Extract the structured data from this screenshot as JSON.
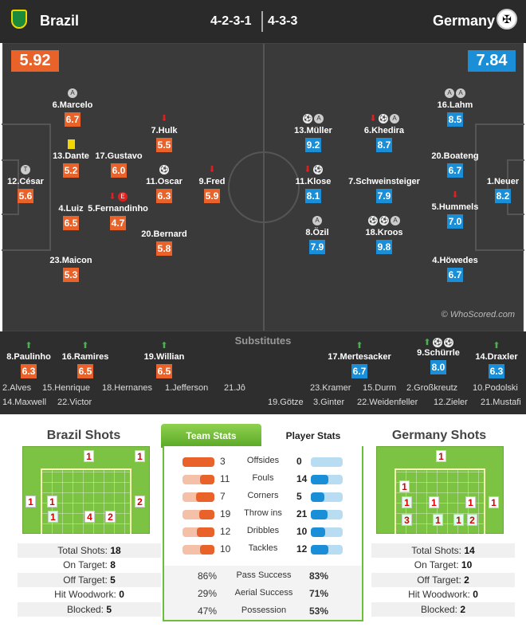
{
  "header": {
    "home_team": "Brazil",
    "away_team": "Germany",
    "home_formation": "4-2-3-1",
    "away_formation": "4-3-3"
  },
  "pitch": {
    "home_rating": "5.92",
    "away_rating": "7.84",
    "watermark": "© WhoScored.com"
  },
  "home_players": [
    {
      "name": "6.Marcelo",
      "rating": "6.7"
    },
    {
      "name": "13.Dante",
      "rating": "5.2"
    },
    {
      "name": "17.Gustavo",
      "rating": "6.0"
    },
    {
      "name": "7.Hulk",
      "rating": "5.5"
    },
    {
      "name": "12.César",
      "rating": "5.6"
    },
    {
      "name": "11.Oscar",
      "rating": "6.3"
    },
    {
      "name": "9.Fred",
      "rating": "5.9"
    },
    {
      "name": "4.Luiz",
      "rating": "6.5"
    },
    {
      "name": "5.Fernandinho",
      "rating": "4.7"
    },
    {
      "name": "20.Bernard",
      "rating": "5.8"
    },
    {
      "name": "23.Maicon",
      "rating": "5.3"
    }
  ],
  "away_players": [
    {
      "name": "16.Lahm",
      "rating": "8.5"
    },
    {
      "name": "13.Müller",
      "rating": "9.2"
    },
    {
      "name": "6.Khedira",
      "rating": "8.7"
    },
    {
      "name": "20.Boateng",
      "rating": "6.7"
    },
    {
      "name": "11.Klose",
      "rating": "8.1"
    },
    {
      "name": "7.Schweinsteiger",
      "rating": "7.9"
    },
    {
      "name": "1.Neuer",
      "rating": "8.2"
    },
    {
      "name": "5.Hummels",
      "rating": "7.0"
    },
    {
      "name": "8.Özil",
      "rating": "7.9"
    },
    {
      "name": "18.Kroos",
      "rating": "9.8"
    },
    {
      "name": "4.Höwedes",
      "rating": "6.7"
    }
  ],
  "substitutes": {
    "title": "Substitutes",
    "home": [
      {
        "name": "8.Paulinho",
        "rating": "6.3"
      },
      {
        "name": "16.Ramires",
        "rating": "6.5"
      },
      {
        "name": "19.Willian",
        "rating": "6.5"
      }
    ],
    "away": [
      {
        "name": "17.Mertesacker",
        "rating": "6.7"
      },
      {
        "name": "9.Schürrle",
        "rating": "8.0"
      },
      {
        "name": "14.Draxler",
        "rating": "6.3"
      }
    ],
    "home_bench_1": [
      "2.Alves",
      "15.Henrique",
      "18.Hernanes",
      "1.Jefferson",
      "21.Jô"
    ],
    "home_bench_2": [
      "14.Maxwell",
      "22.Victor"
    ],
    "away_bench_1": [
      "23.Kramer",
      "15.Durm",
      "2.Großkreutz",
      "10.Podolski"
    ],
    "away_bench_2": [
      "19.Götze",
      "3.Ginter",
      "22.Weidenfeller",
      "12.Zieler",
      "21.Mustafi"
    ]
  },
  "brazil_shots": {
    "title": "Brazil Shots",
    "zone_counts": [
      "1",
      "1",
      "1",
      "1",
      "2",
      "4",
      "2",
      "1"
    ],
    "stats": [
      {
        "label": "Total Shots:",
        "value": "18"
      },
      {
        "label": "On Target:",
        "value": "8"
      },
      {
        "label": "Off Target:",
        "value": "5"
      },
      {
        "label": "Hit Woodwork:",
        "value": "0"
      },
      {
        "label": "Blocked:",
        "value": "5"
      }
    ]
  },
  "germany_shots": {
    "title": "Germany Shots",
    "zone_counts": [
      "1",
      "1",
      "1",
      "1",
      "1",
      "1",
      "1",
      "3",
      "1",
      "2"
    ],
    "stats": [
      {
        "label": "Total Shots:",
        "value": "14"
      },
      {
        "label": "On Target:",
        "value": "10"
      },
      {
        "label": "Off Target:",
        "value": "2"
      },
      {
        "label": "Hit Woodwork:",
        "value": "0"
      },
      {
        "label": "Blocked:",
        "value": "2"
      }
    ]
  },
  "tabs": {
    "team_stats": "Team Stats",
    "player_stats": "Player Stats"
  },
  "team_stats": [
    {
      "label": "Offsides",
      "home": "3",
      "away": "0",
      "home_share": 1.0,
      "away_share": 0.0
    },
    {
      "label": "Fouls",
      "home": "11",
      "away": "14",
      "home_share": 0.44,
      "away_share": 0.56
    },
    {
      "label": "Corners",
      "home": "7",
      "away": "5",
      "home_share": 0.58,
      "away_share": 0.42
    },
    {
      "label": "Throw ins",
      "home": "19",
      "away": "21",
      "home_share": 0.48,
      "away_share": 0.52
    },
    {
      "label": "Dribbles",
      "home": "12",
      "away": "10",
      "home_share": 0.55,
      "away_share": 0.45
    },
    {
      "label": "Tackles",
      "home": "10",
      "away": "12",
      "home_share": 0.45,
      "away_share": 0.55
    }
  ],
  "percent_stats": [
    {
      "label": "Pass Success",
      "home": "86%",
      "away": "83%"
    },
    {
      "label": "Aerial Success",
      "home": "29%",
      "away": "71%"
    },
    {
      "label": "Possession",
      "home": "47%",
      "away": "53%"
    }
  ],
  "colors": {
    "home": "#e8622a",
    "away": "#1a8fd8",
    "pitch": "#3a3a3a",
    "goal_grass": "#7cc243"
  }
}
